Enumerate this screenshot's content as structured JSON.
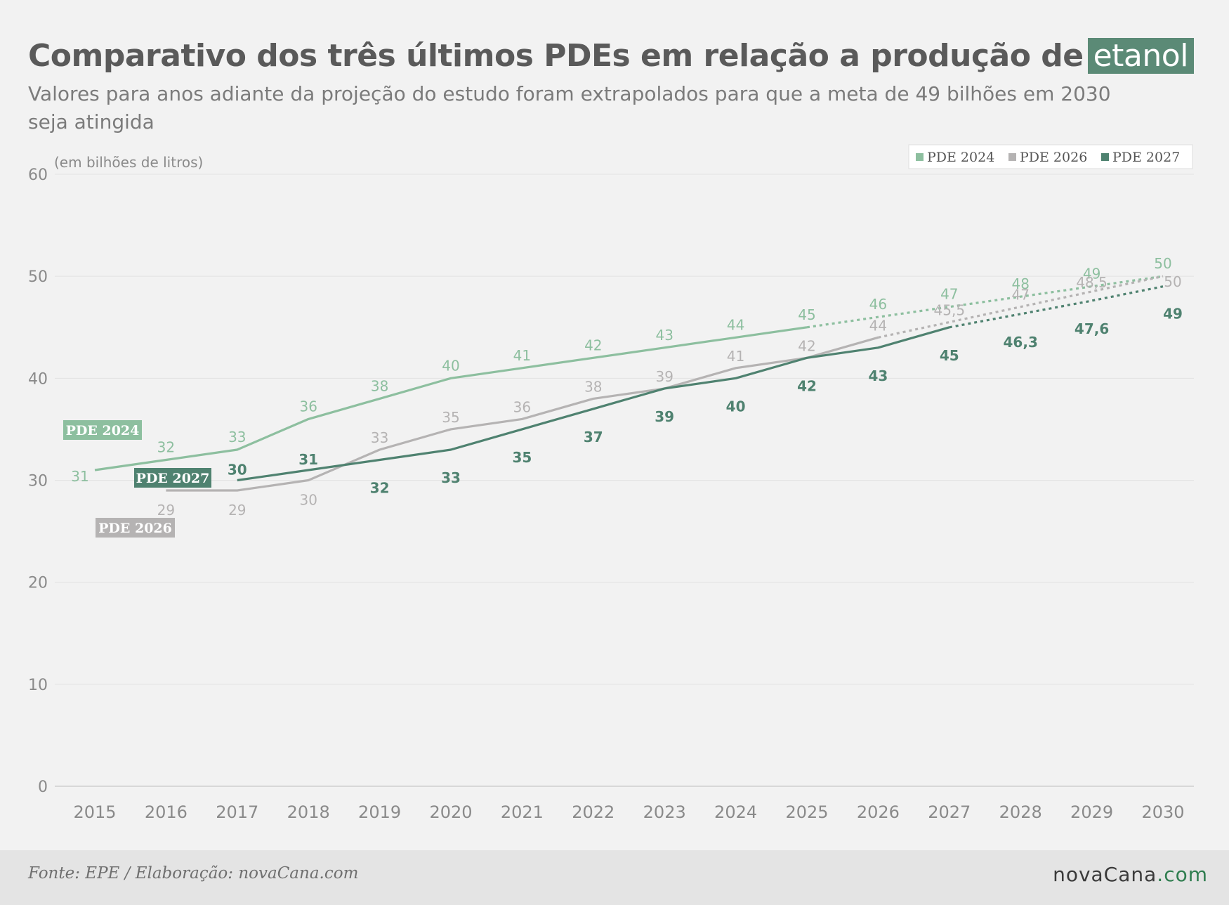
{
  "header": {
    "title": "Comparativo dos três últimos PDEs em relação a produção de",
    "title_highlight": "etanol",
    "subtitle": "Valores para anos adiante da projeção do estudo foram extrapolados para que a meta de 49 bilhões em 2030 seja atingida"
  },
  "footer": {
    "source": "Fonte: EPE / Elaboração: novaCana.com",
    "logo_main": "novaCana",
    "logo_suffix": ".com"
  },
  "chart_data": {
    "type": "line",
    "unit_label": "(em bilhões de litros)",
    "x": [
      2015,
      2016,
      2017,
      2018,
      2019,
      2020,
      2021,
      2022,
      2023,
      2024,
      2025,
      2026,
      2027,
      2028,
      2029,
      2030
    ],
    "ylim": [
      0,
      60
    ],
    "yticks": [
      0,
      10,
      20,
      30,
      40,
      50,
      60
    ],
    "grid": true,
    "legend_position": "top-right",
    "series": [
      {
        "name": "PDE 2024",
        "color": "#8dbf9f",
        "x": [
          2015,
          2016,
          2017,
          2018,
          2019,
          2020,
          2021,
          2022,
          2023,
          2024,
          2025,
          2026,
          2027,
          2028,
          2029,
          2030
        ],
        "values": [
          31,
          32,
          33,
          36,
          38,
          40,
          41,
          42,
          43,
          44,
          45,
          46,
          47,
          48,
          49,
          50
        ],
        "labels": [
          "31",
          "32",
          "33",
          "36",
          "38",
          "40",
          "41",
          "42",
          "43",
          "44",
          "45",
          "46",
          "47",
          "48",
          "49",
          "50"
        ],
        "projected_from": 2025,
        "tag": "PDE 2024"
      },
      {
        "name": "PDE 2026",
        "color": "#b5b3b3",
        "x": [
          2016,
          2017,
          2018,
          2019,
          2020,
          2021,
          2022,
          2023,
          2024,
          2025,
          2026,
          2027,
          2028,
          2029,
          2030
        ],
        "values": [
          29,
          29,
          30,
          33,
          35,
          36,
          38,
          39,
          41,
          42,
          44,
          45.5,
          47,
          48.5,
          50
        ],
        "labels": [
          "29",
          "29",
          "30",
          "33",
          "35",
          "36",
          "38",
          "39",
          "41",
          "42",
          "44",
          "45,5",
          "47",
          "48,5",
          "50"
        ],
        "projected_from": 2026,
        "tag": "PDE 2026"
      },
      {
        "name": "PDE 2027",
        "color": "#4f8270",
        "x": [
          2017,
          2018,
          2019,
          2020,
          2021,
          2022,
          2023,
          2024,
          2025,
          2026,
          2027,
          2028,
          2029,
          2030
        ],
        "values": [
          30,
          31,
          32,
          33,
          35,
          37,
          39,
          40,
          42,
          43,
          45,
          46.3,
          47.6,
          49
        ],
        "labels": [
          "30",
          "31",
          "32",
          "33",
          "35",
          "37",
          "39",
          "40",
          "42",
          "43",
          "45",
          "46,3",
          "47,6",
          "49"
        ],
        "projected_from": 2027,
        "tag": "PDE 2027"
      }
    ]
  }
}
